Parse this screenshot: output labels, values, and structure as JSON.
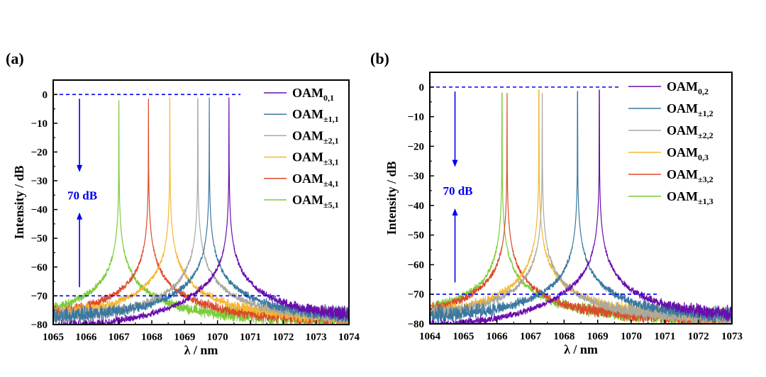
{
  "chart_data": [
    {
      "panel_label": "(a)",
      "type": "line",
      "xlabel": "λ / nm",
      "ylabel": "Intensity / dB",
      "xlim": [
        1065,
        1074
      ],
      "ylim": [
        -80,
        5
      ],
      "xticks": [
        1065,
        1066,
        1067,
        1068,
        1069,
        1070,
        1071,
        1072,
        1073,
        1074
      ],
      "yticks": [
        0,
        -10,
        -20,
        -30,
        -40,
        -50,
        -60,
        -70,
        -80
      ],
      "legend_position": "top-right",
      "series": [
        {
          "name": "OAM",
          "sub": "0,1",
          "color": "#6a0dad",
          "peak_nm": 1070.35,
          "peak_db": 1
        },
        {
          "name": "OAM",
          "sub": "±1,1",
          "color": "#3b78a0",
          "peak_nm": 1069.75,
          "peak_db": 1
        },
        {
          "name": "OAM",
          "sub": "±2,1",
          "color": "#a9a9a0",
          "peak_nm": 1069.4,
          "peak_db": 0.5
        },
        {
          "name": "OAM",
          "sub": "±3,1",
          "color": "#f5b731",
          "peak_nm": 1068.55,
          "peak_db": 1
        },
        {
          "name": "OAM",
          "sub": "±4,1",
          "color": "#dc4a2a",
          "peak_nm": 1067.9,
          "peak_db": 0.5
        },
        {
          "name": "OAM",
          "sub": "±5,1",
          "color": "#7ccc3c",
          "peak_nm": 1067.0,
          "peak_db": 0
        }
      ],
      "reference_lines": [
        {
          "y": 0,
          "x_end": 1070.7,
          "color": "#0000ee"
        },
        {
          "y": -70,
          "x_end": 1071.9,
          "color": "#0000ee"
        }
      ],
      "annotation": {
        "text": "70 dB",
        "x": 1065.8,
        "arrow_down": [
          -1.5,
          -27
        ],
        "arrow_up": [
          -67,
          -41
        ],
        "text_y": -35,
        "color": "#0000ee"
      }
    },
    {
      "panel_label": "(b)",
      "type": "line",
      "xlabel": "λ / nm",
      "ylabel": "Intensity / dB",
      "xlim": [
        1064,
        1073
      ],
      "ylim": [
        -80,
        5
      ],
      "xticks": [
        1064,
        1065,
        1066,
        1067,
        1068,
        1069,
        1070,
        1071,
        1072,
        1073
      ],
      "yticks": [
        0,
        -10,
        -20,
        -30,
        -40,
        -50,
        -60,
        -70,
        -80
      ],
      "legend_position": "top-right",
      "series": [
        {
          "name": "OAM",
          "sub": "0,2",
          "color": "#6a0dad",
          "peak_nm": 1069.05,
          "peak_db": 1
        },
        {
          "name": "OAM",
          "sub": "±1,2",
          "color": "#3b78a0",
          "peak_nm": 1068.4,
          "peak_db": 0.5
        },
        {
          "name": "OAM",
          "sub": "±2,2",
          "color": "#a9a9a0",
          "peak_nm": 1067.35,
          "peak_db": 0
        },
        {
          "name": "OAM",
          "sub": "0,3",
          "color": "#f5b731",
          "peak_nm": 1067.25,
          "peak_db": 1
        },
        {
          "name": "OAM",
          "sub": "±3,2",
          "color": "#dc4a2a",
          "peak_nm": 1066.3,
          "peak_db": 0
        },
        {
          "name": "OAM",
          "sub": "±1,3",
          "color": "#7ccc3c",
          "peak_nm": 1066.15,
          "peak_db": 0
        }
      ],
      "reference_lines": [
        {
          "y": 0,
          "x_end": 1069.7,
          "color": "#0000ee"
        },
        {
          "y": -70,
          "x_end": 1070.8,
          "color": "#0000ee"
        }
      ],
      "annotation": {
        "text": "70 dB",
        "x": 1064.75,
        "arrow_down": [
          -1.5,
          -27
        ],
        "arrow_up": [
          -66,
          -41
        ],
        "text_y": -35,
        "color": "#0000ee"
      }
    }
  ]
}
